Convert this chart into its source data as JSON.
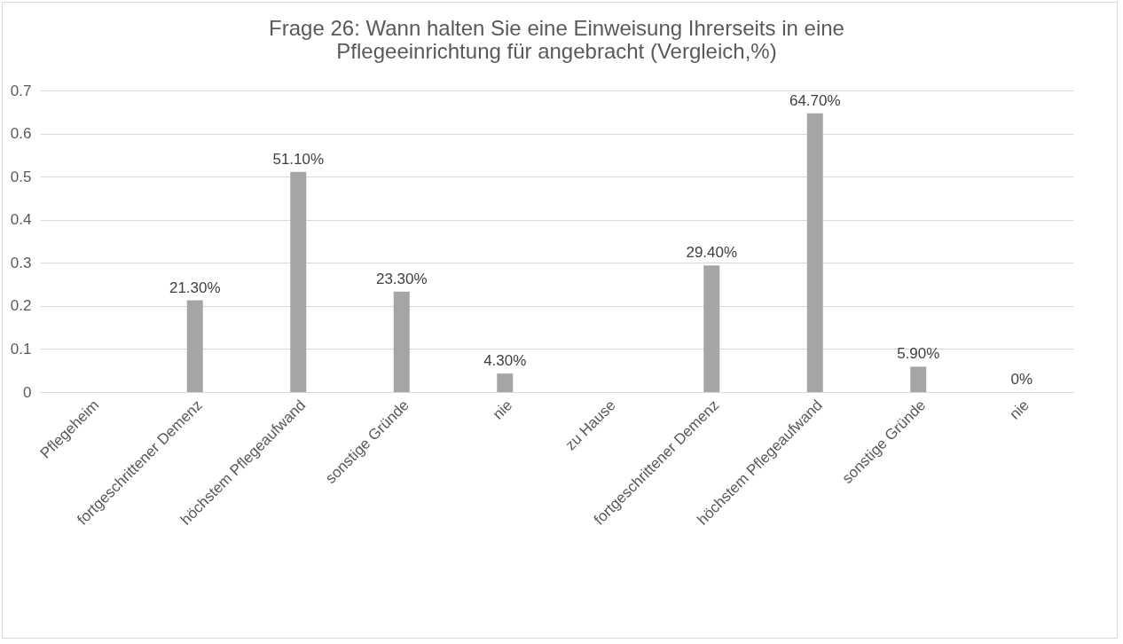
{
  "chart_data": {
    "type": "bar",
    "title": "Frage 26: Wann halten Sie eine Einweisung Ihrerseits in eine Pflegeeinrichtung für angebracht (Vergleich,%)",
    "categories": [
      "Pflegeheim",
      "fortgeschrittener Demenz",
      "höchstem Pflegeaufwand",
      "sonstige Gründe",
      "nie",
      "zu Hause",
      "fortgeschrittener Demenz",
      "höchstem Pflegeaufwand",
      "sonstige Gründe",
      "nie"
    ],
    "values": [
      null,
      0.213,
      0.511,
      0.233,
      0.043,
      null,
      0.294,
      0.647,
      0.059,
      0
    ],
    "value_labels": [
      null,
      "21.30%",
      "51.10%",
      "23.30%",
      "4.30%",
      null,
      "29.40%",
      "64.70%",
      "5.90%",
      "0%"
    ],
    "color": "#a5a5a5",
    "ylim": [
      0,
      0.7
    ],
    "yticks": [
      0,
      0.1,
      0.2,
      0.3,
      0.4,
      0.5,
      0.6,
      0.7
    ],
    "grid": "y"
  }
}
